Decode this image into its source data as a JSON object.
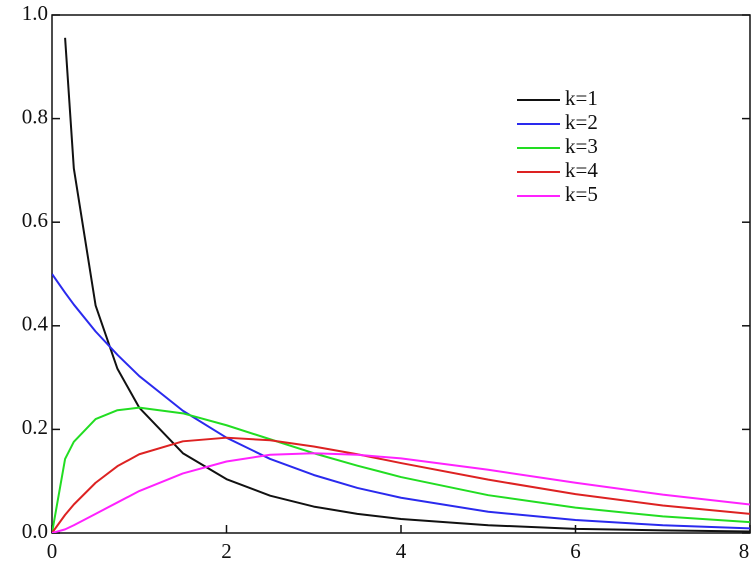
{
  "chart_data": {
    "type": "line",
    "x": [
      0,
      0.15,
      0.25,
      0.5,
      0.75,
      1,
      1.5,
      2,
      2.5,
      3,
      3.5,
      4,
      5,
      6,
      7,
      8
    ],
    "series": [
      {
        "name": "k=1",
        "color": "#111111",
        "values": [
          null,
          0.956,
          0.704,
          0.439,
          0.317,
          0.242,
          0.154,
          0.104,
          0.072,
          0.051,
          0.037,
          0.027,
          0.015,
          0.008,
          0.005,
          0.003
        ]
      },
      {
        "name": "k=2",
        "color": "#2a2aee",
        "values": [
          0.5,
          0.464,
          0.441,
          0.389,
          0.344,
          0.303,
          0.236,
          0.184,
          0.143,
          0.112,
          0.087,
          0.068,
          0.041,
          0.025,
          0.015,
          0.009
        ]
      },
      {
        "name": "k=3",
        "color": "#22dd22",
        "values": [
          0,
          0.143,
          0.176,
          0.22,
          0.237,
          0.242,
          0.231,
          0.208,
          0.181,
          0.154,
          0.13,
          0.108,
          0.073,
          0.049,
          0.032,
          0.021
        ]
      },
      {
        "name": "k=4",
        "color": "#dd2222",
        "values": [
          0,
          0.035,
          0.055,
          0.097,
          0.129,
          0.152,
          0.177,
          0.184,
          0.179,
          0.167,
          0.152,
          0.135,
          0.103,
          0.075,
          0.053,
          0.037
        ]
      },
      {
        "name": "k=5",
        "color": "#ff22ff",
        "values": [
          0,
          0.007,
          0.015,
          0.037,
          0.059,
          0.081,
          0.115,
          0.138,
          0.151,
          0.154,
          0.151,
          0.144,
          0.122,
          0.097,
          0.074,
          0.055
        ]
      }
    ],
    "xlim": [
      0,
      8
    ],
    "xticks": [
      0,
      2,
      4,
      6,
      8
    ],
    "ylim": [
      0,
      1
    ],
    "yticks": [
      {
        "value": 0,
        "label": "0.0"
      },
      0.2,
      0.4,
      0.6,
      0.8,
      {
        "value": 1,
        "label": "1.0"
      }
    ]
  }
}
